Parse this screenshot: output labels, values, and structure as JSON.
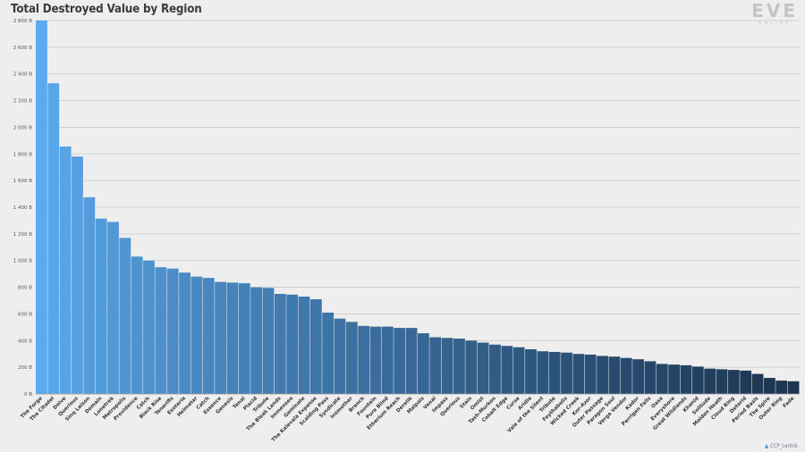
{
  "title": "Total Destroyed Value by Region",
  "logo": {
    "main": "EVE",
    "sub": "ONLINE"
  },
  "credit": "CCP_Lenhik",
  "chart_data": {
    "type": "bar",
    "title": "Total Destroyed Value by Region",
    "xlabel": "",
    "ylabel": "",
    "ylim": [
      0,
      2800
    ],
    "y_unit": "B",
    "yticks": [
      0,
      200,
      400,
      600,
      800,
      1000,
      1200,
      1400,
      1600,
      1800,
      2000,
      2200,
      2400,
      2600,
      2800
    ],
    "ytick_labels": [
      "0 B",
      "200 B",
      "400 B",
      "600 B",
      "800 B",
      "1 000 B",
      "1 200 B",
      "1 400 B",
      "1 600 B",
      "1 800 B",
      "2 000 B",
      "2 200 B",
      "2 400 B",
      "2 600 B",
      "2 800 B"
    ],
    "grid": true,
    "legend": "none",
    "colors": {
      "first": "#5aaaf0",
      "last": "#1c3550",
      "gridline": "#c8c8c8"
    },
    "categories": [
      "The Forge",
      "The Citadel",
      "Delve",
      "Querious",
      "Sinq Laison",
      "Domain",
      "Lonetrek",
      "Metropolis",
      "Providence",
      "Catch",
      "Black Rise",
      "Tenerifis",
      "Esoteria",
      "Heimatar",
      "Catch",
      "Essence",
      "Genesis",
      "Tenal",
      "Placid",
      "Tribute",
      "The Bleak Lands",
      "Immensea",
      "Geminate",
      "The Kalevala Expanse",
      "Scalding Pass",
      "Syndicate",
      "Insmother",
      "Branch",
      "Fountain",
      "Pure Blind",
      "Etherium Reach",
      "Derelik",
      "Malpais",
      "Venal",
      "Impass",
      "Querious",
      "Stain",
      "Omist",
      "Tash-Murkon",
      "Cobalt Edge",
      "Curse",
      "Aridia",
      "Vale of the Silent",
      "Tribute",
      "Feythabolis",
      "Wicked Creek",
      "Kor-Azor",
      "Outer Passage",
      "Paragon Soul",
      "Verge Vendor",
      "Kador",
      "Perrigen Falls",
      "Oasa",
      "Everyshore",
      "Great Wildlands",
      "Khanid",
      "Solitude",
      "Molden Heath",
      "Cloud Ring",
      "Detorid",
      "Period Basis",
      "The Spire",
      "Outer Ring",
      "Fade"
    ],
    "values": [
      2800,
      2330,
      1855,
      1780,
      1475,
      1315,
      1290,
      1170,
      1030,
      1000,
      950,
      940,
      910,
      880,
      870,
      840,
      835,
      830,
      800,
      795,
      750,
      745,
      730,
      710,
      610,
      565,
      540,
      510,
      505,
      505,
      495,
      495,
      455,
      425,
      420,
      415,
      400,
      385,
      370,
      360,
      350,
      335,
      320,
      315,
      310,
      300,
      295,
      285,
      280,
      270,
      260,
      245,
      225,
      220,
      215,
      205,
      190,
      185,
      180,
      175,
      150,
      120,
      100,
      95
    ]
  }
}
